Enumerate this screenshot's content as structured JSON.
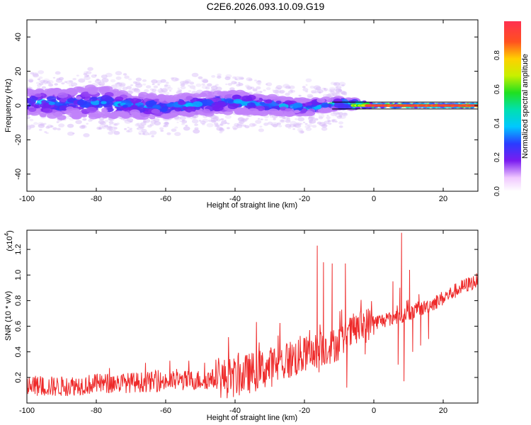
{
  "title": "C2E6.2026.093.10.09.G19",
  "colors": {
    "background": "#ffffff",
    "axis": "#000000",
    "snr_line": "#ee2a2a",
    "spectrogram_halo": "#c8a8f5",
    "spectrogram_core": "#7a1cf0"
  },
  "chart_data": [
    {
      "type": "heatmap",
      "title": "C2E6.2026.093.10.09.G19",
      "xlabel": "Height of straight line (km)",
      "ylabel": "Frequency (Hz)",
      "xlim": [
        -100,
        30
      ],
      "ylim": [
        -50,
        50
      ],
      "xticks": [
        -100,
        -80,
        -60,
        -40,
        -20,
        0,
        20
      ],
      "yticks": [
        40,
        20,
        0,
        -20,
        -40
      ],
      "grid": false,
      "colorbar": {
        "label": "Normalized spectral amplitude",
        "range": [
          0,
          1
        ],
        "ticks": [
          "0.0",
          "0.2",
          "0.4",
          "0.6",
          "0.8"
        ]
      },
      "band_profile": [
        {
          "x": -100,
          "center": 2,
          "half_width": 7,
          "peak": 0.35
        },
        {
          "x": -90,
          "center": 1,
          "half_width": 8,
          "peak": 0.35
        },
        {
          "x": -80,
          "center": 2,
          "half_width": 9,
          "peak": 0.33
        },
        {
          "x": -70,
          "center": 0,
          "half_width": 7,
          "peak": 0.35
        },
        {
          "x": -60,
          "center": -1,
          "half_width": 6,
          "peak": 0.35
        },
        {
          "x": -50,
          "center": 1,
          "half_width": 6,
          "peak": 0.38
        },
        {
          "x": -40,
          "center": 2,
          "half_width": 6,
          "peak": 0.38
        },
        {
          "x": -30,
          "center": 0,
          "half_width": 5,
          "peak": 0.38
        },
        {
          "x": -20,
          "center": -1,
          "half_width": 4,
          "peak": 0.42
        },
        {
          "x": -10,
          "center": 1,
          "half_width": 3,
          "peak": 0.5
        },
        {
          "x": -3,
          "center": 0.5,
          "half_width": 2,
          "peak": 0.8
        },
        {
          "x": 0,
          "center": 0,
          "half_width": 1,
          "peak": 0.9
        },
        {
          "x": 10,
          "center": 0,
          "half_width": 1,
          "peak": 0.85
        },
        {
          "x": 20,
          "center": 0,
          "half_width": 1,
          "peak": 0.85
        },
        {
          "x": 30,
          "center": 0,
          "half_width": 1,
          "peak": 0.9
        }
      ],
      "reference_line_hz": 0
    },
    {
      "type": "line",
      "xlabel": "Height of straight line (km)",
      "ylabel": "SNR (10 * v/v)",
      "yscale_label": "(x10",
      "yscale_exp": "4",
      "yscale_close": ")",
      "xlim": [
        -100,
        30
      ],
      "ylim": [
        0,
        1.35
      ],
      "xticks": [
        -100,
        -80,
        -60,
        -40,
        -20,
        0,
        20
      ],
      "yticks": [
        0.2,
        0.4,
        0.6,
        0.8,
        1.0,
        1.2
      ],
      "grid": false,
      "series": [
        {
          "name": "SNR",
          "baseline": [
            [
              -100,
              0.13
            ],
            [
              -90,
              0.13
            ],
            [
              -80,
              0.15
            ],
            [
              -70,
              0.16
            ],
            [
              -60,
              0.17
            ],
            [
              -50,
              0.18
            ],
            [
              -40,
              0.2
            ],
            [
              -35,
              0.24
            ],
            [
              -30,
              0.28
            ],
            [
              -25,
              0.33
            ],
            [
              -20,
              0.38
            ],
            [
              -15,
              0.42
            ],
            [
              -10,
              0.47
            ],
            [
              -5,
              0.58
            ],
            [
              0,
              0.63
            ],
            [
              5,
              0.66
            ],
            [
              10,
              0.7
            ],
            [
              15,
              0.75
            ],
            [
              20,
              0.82
            ],
            [
              25,
              0.9
            ],
            [
              30,
              0.96
            ]
          ],
          "spikes": [
            [
              -16.3,
              1.23
            ],
            [
              -15.8,
              0.24
            ],
            [
              -14.5,
              1.1
            ],
            [
              -13.8,
              0.5
            ],
            [
              -12.0,
              1.09
            ],
            [
              -11.5,
              0.42
            ],
            [
              -8.2,
              1.09
            ],
            [
              -7.8,
              0.12
            ],
            [
              -3.0,
              0.7
            ],
            [
              -2.5,
              0.38
            ],
            [
              5.5,
              0.95
            ],
            [
              7.0,
              0.3
            ],
            [
              7.5,
              0.9
            ],
            [
              8.0,
              1.33
            ],
            [
              8.7,
              0.17
            ],
            [
              9.5,
              0.8
            ],
            [
              10.3,
              1.04
            ],
            [
              11.2,
              0.4
            ],
            [
              13.0,
              0.85
            ],
            [
              13.5,
              0.45
            ],
            [
              15.0,
              0.78
            ],
            [
              15.8,
              0.5
            ]
          ],
          "noise_amplitude": 0.1
        }
      ]
    }
  ]
}
